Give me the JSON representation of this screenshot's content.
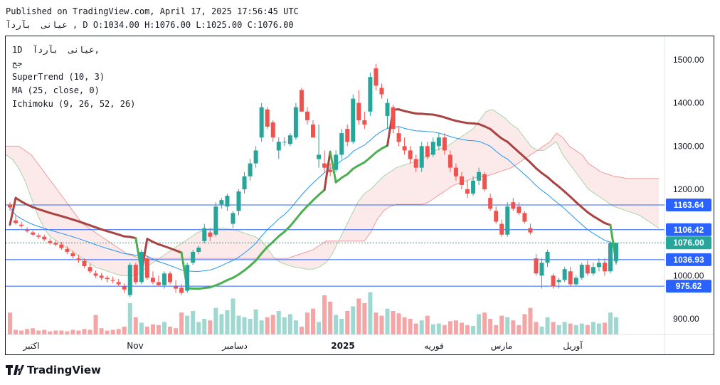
{
  "header": {
    "published": "Published on TradingView.com, April 17, 2025 17:56:45 UTC",
    "ohlc_line": "عیانی  بآردآ , D O:1034.00 H:1076.00 L:1025.00 C:1076.00"
  },
  "legend": {
    "symbol": "1D  عیانی  بآردآ,",
    "sub": "جح",
    "supertrend": "SuperTrend (10, 3)",
    "ma": "MA (25, close, 0)",
    "ichimoku": "Ichimoku (9, 26, 52, 26)"
  },
  "footer": {
    "brand": "TradingView"
  },
  "colors": {
    "up": "#26a69a",
    "down": "#ef5350",
    "st_up": "#4caf50",
    "st_down": "#a94442",
    "ma": "#2196f3"
  },
  "chart_data": {
    "type": "candlestick",
    "y_ticks": [
      "1500.00",
      "1400.00",
      "1300.00",
      "1200.00",
      "1100.00",
      "1000.00",
      "900.00"
    ],
    "x_labels": [
      "اکتبر",
      "Nov",
      "دسامبر",
      "2025",
      "فوریه",
      "مارس",
      "آوریل"
    ],
    "price_lines": [
      {
        "label": "1163.64",
        "value": 1163.64,
        "color": "#2962ff"
      },
      {
        "label": "1106.42",
        "value": 1106.42,
        "color": "#2962ff"
      },
      {
        "label": "1076.00",
        "value": 1076.0,
        "color": "#26a69a"
      },
      {
        "label": "1036.93",
        "value": 1036.93,
        "color": "#2962ff"
      },
      {
        "label": "975.62",
        "value": 975.62,
        "color": "#2962ff"
      }
    ],
    "candles": [
      [
        1165,
        1170,
        1150,
        1158
      ],
      [
        1128,
        1140,
        1118,
        1122
      ],
      [
        1118,
        1125,
        1110,
        1115
      ],
      [
        1106,
        1112,
        1100,
        1103
      ],
      [
        1100,
        1105,
        1092,
        1095
      ],
      [
        1093,
        1098,
        1085,
        1090
      ],
      [
        1090,
        1095,
        1080,
        1084
      ],
      [
        1080,
        1086,
        1072,
        1076
      ],
      [
        1076,
        1082,
        1068,
        1072
      ],
      [
        1072,
        1078,
        1060,
        1064
      ],
      [
        1062,
        1068,
        1050,
        1055
      ],
      [
        1052,
        1058,
        1040,
        1045
      ],
      [
        1040,
        1048,
        1030,
        1036
      ],
      [
        1034,
        1040,
        1018,
        1022
      ],
      [
        1020,
        1028,
        1005,
        1010
      ],
      [
        1005,
        1012,
        995,
        1000
      ],
      [
        1000,
        1006,
        990,
        995
      ],
      [
        995,
        1000,
        985,
        992
      ],
      [
        990,
        998,
        982,
        988
      ],
      [
        985,
        992,
        975,
        980
      ],
      [
        975,
        982,
        960,
        968
      ],
      [
        955,
        1030,
        950,
        1025
      ],
      [
        1025,
        1030,
        980,
        985
      ],
      [
        985,
        1060,
        980,
        1055
      ],
      [
        1040,
        1045,
        990,
        995
      ],
      [
        995,
        1010,
        980,
        985
      ],
      [
        985,
        1000,
        975,
        978
      ],
      [
        978,
        1010,
        970,
        1005
      ],
      [
        1005,
        1010,
        980,
        985
      ],
      [
        975,
        990,
        960,
        970
      ],
      [
        972,
        980,
        955,
        960
      ],
      [
        965,
        1030,
        960,
        1025
      ],
      [
        1030,
        1060,
        1025,
        1055
      ],
      [
        1055,
        1070,
        1050,
        1065
      ],
      [
        1080,
        1120,
        1075,
        1110
      ],
      [
        1100,
        1110,
        1080,
        1090
      ],
      [
        1095,
        1170,
        1090,
        1160
      ],
      [
        1165,
        1180,
        1155,
        1175
      ],
      [
        1160,
        1190,
        1150,
        1185
      ],
      [
        1120,
        1150,
        1110,
        1145
      ],
      [
        1150,
        1200,
        1140,
        1195
      ],
      [
        1200,
        1240,
        1190,
        1230
      ],
      [
        1230,
        1270,
        1220,
        1260
      ],
      [
        1260,
        1300,
        1250,
        1290
      ],
      [
        1320,
        1400,
        1310,
        1390
      ],
      [
        1385,
        1390,
        1340,
        1345
      ],
      [
        1355,
        1360,
        1310,
        1320
      ],
      [
        1290,
        1320,
        1270,
        1310
      ],
      [
        1310,
        1320,
        1300,
        1310
      ],
      [
        1305,
        1330,
        1300,
        1325
      ],
      [
        1320,
        1400,
        1315,
        1390
      ],
      [
        1430,
        1435,
        1380,
        1380
      ],
      [
        1380,
        1390,
        1350,
        1360
      ],
      [
        1350,
        1360,
        1320,
        1320
      ],
      [
        1270,
        1350,
        1250,
        1280
      ],
      [
        1260,
        1290,
        1240,
        1250
      ],
      [
        1245,
        1260,
        1230,
        1240
      ],
      [
        1245,
        1290,
        1240,
        1280
      ],
      [
        1280,
        1340,
        1270,
        1330
      ],
      [
        1340,
        1350,
        1300,
        1310
      ],
      [
        1310,
        1420,
        1305,
        1410
      ],
      [
        1400,
        1430,
        1350,
        1360
      ],
      [
        1360,
        1380,
        1340,
        1350
      ],
      [
        1380,
        1470,
        1370,
        1460
      ],
      [
        1480,
        1490,
        1430,
        1440
      ],
      [
        1435,
        1445,
        1410,
        1420
      ],
      [
        1370,
        1410,
        1340,
        1400
      ],
      [
        1390,
        1395,
        1330,
        1340
      ],
      [
        1330,
        1345,
        1300,
        1310
      ],
      [
        1300,
        1320,
        1280,
        1290
      ],
      [
        1290,
        1300,
        1260,
        1270
      ],
      [
        1270,
        1280,
        1240,
        1250
      ],
      [
        1250,
        1310,
        1240,
        1300
      ],
      [
        1300,
        1310,
        1270,
        1275
      ],
      [
        1280,
        1320,
        1275,
        1310
      ],
      [
        1300,
        1330,
        1290,
        1320
      ],
      [
        1320,
        1330,
        1280,
        1290
      ],
      [
        1280,
        1290,
        1240,
        1250
      ],
      [
        1250,
        1260,
        1220,
        1230
      ],
      [
        1230,
        1240,
        1200,
        1210
      ],
      [
        1200,
        1220,
        1180,
        1190
      ],
      [
        1190,
        1230,
        1185,
        1220
      ],
      [
        1220,
        1250,
        1210,
        1240
      ],
      [
        1235,
        1240,
        1195,
        1200
      ],
      [
        1180,
        1190,
        1150,
        1155
      ],
      [
        1150,
        1160,
        1120,
        1125
      ],
      [
        1120,
        1130,
        1090,
        1095
      ],
      [
        1095,
        1170,
        1090,
        1160
      ],
      [
        1170,
        1180,
        1150,
        1155
      ],
      [
        1160,
        1170,
        1140,
        1145
      ],
      [
        1145,
        1150,
        1120,
        1125
      ],
      [
        1110,
        1120,
        1095,
        1100
      ],
      [
        1040,
        1050,
        1000,
        1005
      ],
      [
        1000,
        1040,
        970,
        1030
      ],
      [
        1030,
        1060,
        1020,
        1055
      ],
      [
        1000,
        1005,
        970,
        975
      ],
      [
        985,
        995,
        970,
        990
      ],
      [
        990,
        1020,
        985,
        1015
      ],
      [
        1010,
        1020,
        975,
        980
      ],
      [
        980,
        1000,
        975,
        995
      ],
      [
        995,
        1030,
        990,
        1025
      ],
      [
        1025,
        1035,
        1000,
        1005
      ],
      [
        1005,
        1030,
        1000,
        1020
      ],
      [
        1020,
        1040,
        1010,
        1030
      ],
      [
        1030,
        1040,
        1000,
        1010
      ],
      [
        1010,
        1080,
        1005,
        1075
      ],
      [
        1034,
        1076,
        1025,
        1076
      ]
    ],
    "volumes": [
      0.28,
      0.06,
      0.05,
      0.07,
      0.08,
      0.05,
      0.06,
      0.04,
      0.05,
      0.05,
      0.04,
      0.06,
      0.05,
      0.07,
      0.06,
      0.25,
      0.08,
      0.05,
      0.06,
      0.07,
      0.1,
      0.4,
      0.22,
      0.15,
      0.1,
      0.13,
      0.12,
      0.16,
      0.1,
      0.08,
      0.28,
      0.24,
      0.3,
      0.16,
      0.2,
      0.18,
      0.34,
      0.26,
      0.31,
      0.46,
      0.24,
      0.22,
      0.2,
      0.32,
      0.18,
      0.22,
      0.25,
      0.3,
      0.22,
      0.26,
      0.18,
      0.1,
      0.28,
      0.33,
      0.16,
      0.5,
      0.42,
      0.25,
      0.2,
      0.3,
      0.36,
      0.46,
      0.4,
      0.54,
      0.28,
      0.24,
      0.33,
      0.3,
      0.27,
      0.22,
      0.2,
      0.14,
      0.18,
      0.24,
      0.13,
      0.14,
      0.12,
      0.17,
      0.18,
      0.15,
      0.12,
      0.11,
      0.26,
      0.28,
      0.2,
      0.12,
      0.24,
      0.22,
      0.18,
      0.12,
      0.26,
      0.34,
      0.16,
      0.1,
      0.22,
      0.16,
      0.12,
      0.16,
      0.14,
      0.12,
      0.14,
      0.12,
      0.16,
      0.14,
      0.15,
      0.28,
      0.22
    ]
  }
}
